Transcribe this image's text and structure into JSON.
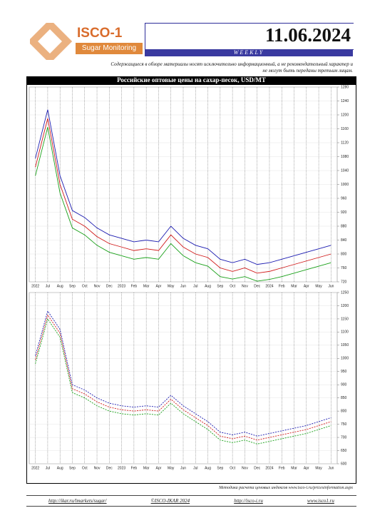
{
  "header": {
    "logo_title": "ISCO-1",
    "logo_subtitle": "Sugar Monitoring",
    "date": "11.06.2024",
    "period": "WEEKLY",
    "disclaimer": "Содержащиеся в обзоре материалы носят исключительно информационный, а не рекомендательный характер и не могут быть переданы третьим лицам."
  },
  "chart_data": [
    {
      "type": "line",
      "title": "Российские оптовые цены на сахар-песок, USD/MT",
      "categories": [
        "2022",
        "Jul",
        "Aug",
        "Sep",
        "Oct",
        "Nov",
        "Dec",
        "2023",
        "Feb",
        "Mar",
        "Apr",
        "May",
        "Jun",
        "Jul",
        "Aug",
        "Sep",
        "Oct",
        "Nov",
        "Dec",
        "2024",
        "Feb",
        "Mar",
        "Apr",
        "May",
        "Jun"
      ],
      "series": [
        {
          "color": "#1a1ab0",
          "values": [
            1075,
            1215,
            1025,
            925,
            905,
            875,
            855,
            845,
            835,
            840,
            835,
            880,
            845,
            825,
            815,
            785,
            775,
            785,
            770,
            775,
            785,
            795,
            805,
            815,
            825
          ]
        },
        {
          "color": "#d01818",
          "values": [
            1050,
            1190,
            1000,
            900,
            880,
            850,
            830,
            820,
            810,
            815,
            810,
            855,
            820,
            800,
            790,
            760,
            750,
            760,
            745,
            750,
            760,
            770,
            780,
            790,
            800
          ]
        },
        {
          "color": "#18a018",
          "values": [
            1025,
            1165,
            975,
            875,
            855,
            825,
            805,
            795,
            785,
            790,
            785,
            830,
            795,
            775,
            765,
            735,
            728,
            735,
            722,
            727,
            735,
            745,
            755,
            765,
            775
          ]
        }
      ],
      "ylim": [
        720,
        1280
      ],
      "yticks": [
        720,
        760,
        800,
        840,
        880,
        920,
        960,
        1000,
        1040,
        1080,
        1120,
        1160,
        1200,
        1240,
        1280
      ],
      "grid": true,
      "line_style": "solid"
    },
    {
      "type": "line",
      "categories": [
        "2022",
        "Jul",
        "Aug",
        "Sep",
        "Oct",
        "Nov",
        "Dec",
        "2023",
        "Feb",
        "Mar",
        "Apr",
        "May",
        "Jun",
        "Jul",
        "Aug",
        "Sep",
        "Oct",
        "Nov",
        "Dec",
        "2024",
        "Feb",
        "Mar",
        "Apr",
        "May",
        "Jun"
      ],
      "series": [
        {
          "color": "#1a1ab0",
          "values": [
            1010,
            1180,
            1110,
            900,
            880,
            850,
            830,
            820,
            815,
            820,
            815,
            860,
            820,
            790,
            760,
            720,
            710,
            720,
            705,
            715,
            725,
            735,
            745,
            760,
            775
          ]
        },
        {
          "color": "#d01818",
          "values": [
            995,
            1165,
            1095,
            885,
            865,
            835,
            815,
            805,
            800,
            805,
            800,
            845,
            805,
            775,
            745,
            705,
            695,
            705,
            690,
            700,
            710,
            720,
            730,
            745,
            760
          ]
        },
        {
          "color": "#18a018",
          "values": [
            980,
            1150,
            1080,
            870,
            850,
            820,
            800,
            790,
            785,
            790,
            785,
            830,
            790,
            760,
            730,
            690,
            680,
            690,
            675,
            685,
            695,
            705,
            715,
            730,
            745
          ]
        }
      ],
      "ylim": [
        600,
        1250
      ],
      "yticks": [
        600,
        650,
        700,
        750,
        800,
        850,
        900,
        950,
        1000,
        1050,
        1100,
        1150,
        1200,
        1250
      ],
      "grid": true,
      "line_style": "dashed"
    }
  ],
  "footer": {
    "method_note": "Методика расчета ценовых индексов www.isco-i.ru/pricesinformation.aspx",
    "links": [
      "http://ikar.ru/lmarkets/sugar/",
      "©ISCO-IKAR 2024",
      "http://isco-i.ru",
      "www.isco1.ru"
    ]
  }
}
